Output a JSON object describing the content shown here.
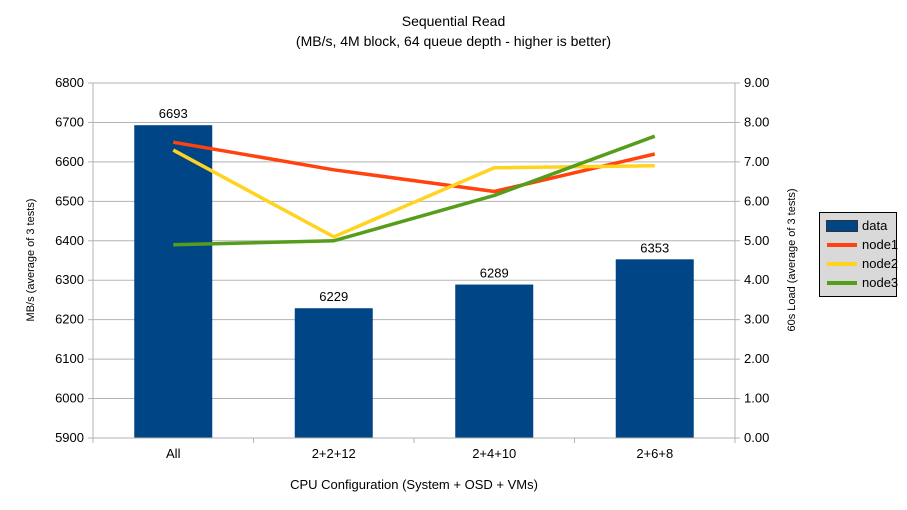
{
  "chart_data": {
    "type": "bar+line",
    "title": "Sequential Read",
    "subtitle": "(MB/s, 4M block, 64 queue depth - higher is better)",
    "xlabel": "CPU Configuration (System + OSD + VMs)",
    "ylabel_left": "MB/s (average of 3 tests)",
    "ylabel_right": "60s Load (average of 3 tests)",
    "categories": [
      "All",
      "2+2+12",
      "2+4+10",
      "2+6+8"
    ],
    "bar_series": {
      "name": "data",
      "axis": "left",
      "color": "#004586",
      "values": [
        6693,
        6229,
        6289,
        6353
      ],
      "labels": [
        "6693",
        "6229",
        "6289",
        "6353"
      ]
    },
    "line_series": [
      {
        "name": "node1",
        "axis": "right",
        "color": "#ff420e",
        "values": [
          7.5,
          6.8,
          6.25,
          7.2
        ]
      },
      {
        "name": "node2",
        "axis": "right",
        "color": "#ffd320",
        "values": [
          7.3,
          5.1,
          6.85,
          6.9
        ]
      },
      {
        "name": "node3",
        "axis": "right",
        "color": "#579d1c",
        "values": [
          4.9,
          5.0,
          6.15,
          7.65
        ]
      }
    ],
    "axes": {
      "left": {
        "min": 5900,
        "max": 6800,
        "step": 100,
        "decimals": 0
      },
      "right": {
        "min": 0,
        "max": 9,
        "step": 1,
        "decimals": 2
      }
    },
    "grid": true,
    "legend_position": "right",
    "colors": {
      "background": "#ffffff",
      "gridline": "#b3b3b3",
      "axis_line": "#b3b3b3",
      "text": "#000000",
      "legend_bg": "#d9d9d9",
      "legend_border": "#000000"
    }
  }
}
